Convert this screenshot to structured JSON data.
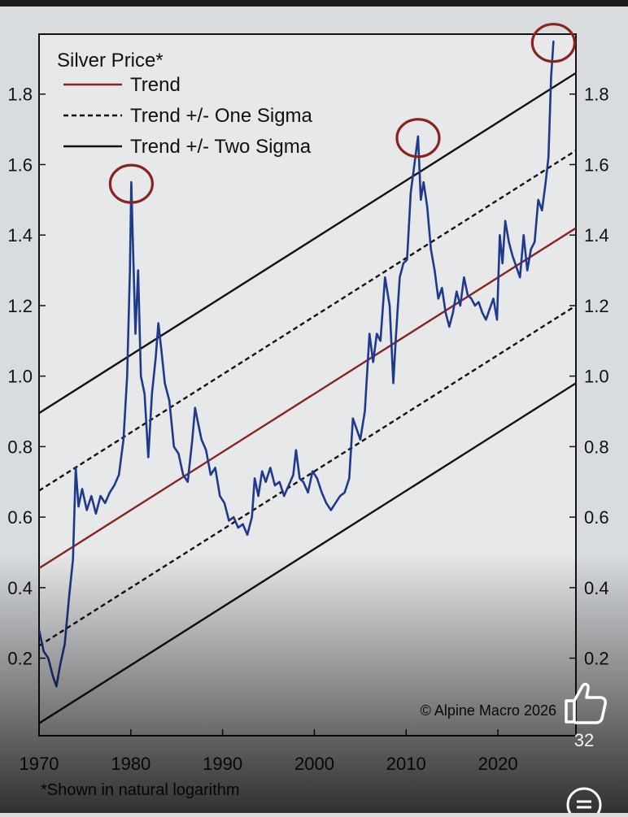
{
  "chart_data": {
    "type": "line",
    "title": "Silver Price*",
    "footnote": "*Shown in natural logarithm",
    "copyright": "© Alpine Macro 2026",
    "x_ticks": [
      1970,
      1980,
      1990,
      2000,
      2010,
      2020
    ],
    "y_ticks": [
      0.2,
      0.4,
      0.6,
      0.8,
      1.0,
      1.2,
      1.4,
      1.6,
      1.8
    ],
    "y_tick_labels": [
      "0.2",
      "0.4",
      "0.6",
      "0.8",
      "1.0",
      "1.2",
      "1.4",
      "1.6",
      "1.8"
    ],
    "x_tick_labels": [
      "1970",
      "1980",
      "1990",
      "2000",
      "2010",
      "2020"
    ],
    "xlim": [
      1970,
      2028.5
    ],
    "ylim": [
      -0.02,
      1.97
    ],
    "legend": {
      "placement": "top-left",
      "entries": [
        {
          "label": "Trend",
          "style": "solid",
          "color": "#8b2222"
        },
        {
          "label": "Trend +/- One Sigma",
          "style": "dashed",
          "color": "#111111"
        },
        {
          "label": "Trend +/- Two Sigma",
          "style": "solid",
          "color": "#111111"
        }
      ]
    },
    "trend_lines": [
      {
        "name": "Trend",
        "x": [
          1970,
          2028.5
        ],
        "y": [
          0.455,
          1.42
        ],
        "style": "solid",
        "color": "#8b2222"
      },
      {
        "name": "Trend + One Sigma",
        "x": [
          1970,
          2028.5
        ],
        "y": [
          0.675,
          1.64
        ],
        "style": "dashed",
        "color": "#111111"
      },
      {
        "name": "Trend - One Sigma",
        "x": [
          1970,
          2028.5
        ],
        "y": [
          0.235,
          1.2
        ],
        "style": "dashed",
        "color": "#111111"
      },
      {
        "name": "Trend + Two Sigma",
        "x": [
          1970,
          2028.5
        ],
        "y": [
          0.895,
          1.86
        ],
        "style": "solid",
        "color": "#111111"
      },
      {
        "name": "Trend - Two Sigma",
        "x": [
          1970,
          2028.5
        ],
        "y": [
          0.015,
          0.98
        ],
        "style": "solid",
        "color": "#111111"
      }
    ],
    "series": [
      {
        "name": "Silver Price",
        "color": "#1f3a8a",
        "x": [
          1970.0,
          1970.5,
          1971.0,
          1971.5,
          1971.9,
          1972.3,
          1972.8,
          1973.3,
          1973.7,
          1974.0,
          1974.3,
          1974.7,
          1975.2,
          1975.7,
          1976.2,
          1976.7,
          1977.2,
          1977.7,
          1978.2,
          1978.7,
          1979.2,
          1979.6,
          1979.9,
          1980.05,
          1980.2,
          1980.5,
          1980.8,
          1981.1,
          1981.5,
          1981.9,
          1982.3,
          1982.7,
          1983.0,
          1983.3,
          1983.7,
          1984.2,
          1984.7,
          1985.2,
          1985.7,
          1986.2,
          1986.7,
          1987.0,
          1987.3,
          1987.7,
          1988.2,
          1988.7,
          1989.2,
          1989.7,
          1990.2,
          1990.7,
          1991.2,
          1991.7,
          1992.2,
          1992.7,
          1993.2,
          1993.5,
          1993.9,
          1994.3,
          1994.7,
          1995.2,
          1995.7,
          1996.2,
          1996.7,
          1997.2,
          1997.7,
          1998.0,
          1998.4,
          1998.8,
          1999.3,
          1999.8,
          2000.3,
          2000.8,
          2001.3,
          2001.8,
          2002.3,
          2002.8,
          2003.3,
          2003.8,
          2004.2,
          2004.6,
          2005.0,
          2005.5,
          2006.0,
          2006.4,
          2006.8,
          2007.2,
          2007.7,
          2008.2,
          2008.6,
          2008.9,
          2009.3,
          2009.7,
          2010.1,
          2010.5,
          2010.9,
          2011.3,
          2011.6,
          2011.9,
          2012.3,
          2012.7,
          2013.1,
          2013.5,
          2013.9,
          2014.3,
          2014.7,
          2015.1,
          2015.5,
          2015.9,
          2016.3,
          2016.7,
          2017.1,
          2017.5,
          2017.9,
          2018.3,
          2018.7,
          2019.1,
          2019.5,
          2019.9,
          2020.2,
          2020.5,
          2020.8,
          2021.2,
          2021.6,
          2022.0,
          2022.4,
          2022.8,
          2023.2,
          2023.6,
          2024.0,
          2024.4,
          2024.8,
          2025.2,
          2025.5,
          2025.8,
          2026.05
        ],
        "values": [
          0.28,
          0.22,
          0.2,
          0.15,
          0.12,
          0.18,
          0.24,
          0.38,
          0.48,
          0.74,
          0.63,
          0.68,
          0.62,
          0.66,
          0.61,
          0.66,
          0.64,
          0.67,
          0.69,
          0.72,
          0.82,
          1.0,
          1.3,
          1.55,
          1.4,
          1.12,
          1.3,
          1.0,
          0.95,
          0.77,
          0.95,
          1.05,
          1.15,
          1.08,
          0.98,
          0.93,
          0.8,
          0.78,
          0.72,
          0.7,
          0.82,
          0.91,
          0.87,
          0.82,
          0.79,
          0.72,
          0.74,
          0.66,
          0.64,
          0.59,
          0.6,
          0.57,
          0.58,
          0.55,
          0.6,
          0.71,
          0.66,
          0.73,
          0.7,
          0.74,
          0.69,
          0.7,
          0.66,
          0.69,
          0.72,
          0.79,
          0.71,
          0.7,
          0.67,
          0.73,
          0.71,
          0.67,
          0.64,
          0.62,
          0.64,
          0.66,
          0.67,
          0.71,
          0.88,
          0.85,
          0.82,
          0.9,
          1.12,
          1.04,
          1.12,
          1.1,
          1.28,
          1.2,
          0.98,
          1.12,
          1.28,
          1.32,
          1.33,
          1.52,
          1.6,
          1.68,
          1.5,
          1.55,
          1.48,
          1.36,
          1.3,
          1.22,
          1.25,
          1.18,
          1.14,
          1.18,
          1.24,
          1.2,
          1.28,
          1.23,
          1.22,
          1.2,
          1.21,
          1.18,
          1.16,
          1.19,
          1.22,
          1.16,
          1.4,
          1.32,
          1.44,
          1.38,
          1.34,
          1.31,
          1.28,
          1.4,
          1.3,
          1.36,
          1.38,
          1.5,
          1.47,
          1.55,
          1.62,
          1.85,
          1.95
        ]
      }
    ],
    "highlighted_peaks": [
      {
        "x": 1980.05,
        "y": 1.55
      },
      {
        "x": 2011.3,
        "y": 1.68
      },
      {
        "x": 2026.05,
        "y": 1.95
      }
    ]
  },
  "colors": {
    "background": "#d9dcdf",
    "plot_background": "#e6e8ea",
    "series": "#1f3a8a",
    "trend": "#8b2222",
    "circle": "#8b2222"
  },
  "overlay": {
    "like_icon": "thumbs-up-icon",
    "like_count": "32",
    "menu_icon": "menu-lines-icon"
  }
}
